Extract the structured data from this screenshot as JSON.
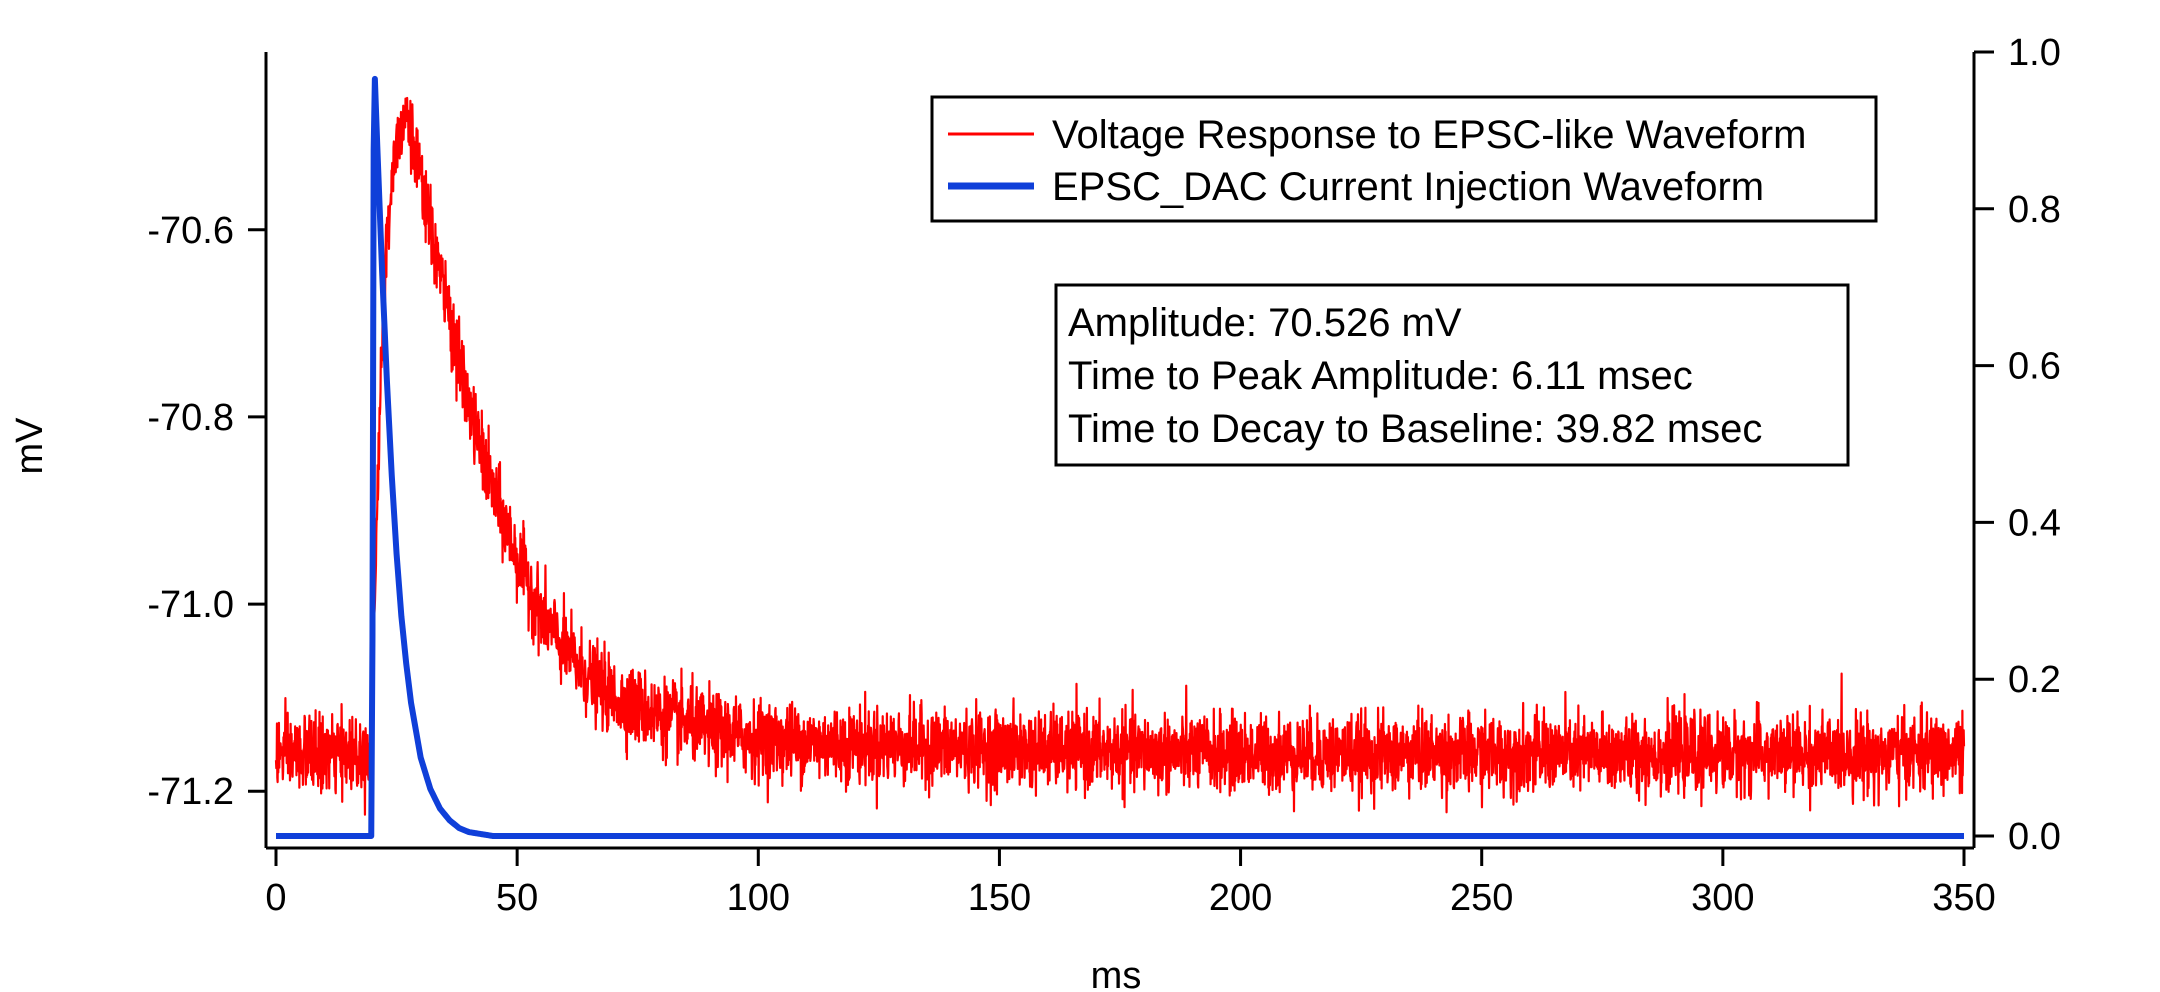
{
  "chart_data": {
    "type": "line",
    "xlabel": "ms",
    "ylabel": "mV",
    "xlim": [
      0,
      350
    ],
    "ylim_left": [
      -71.25,
      -70.41
    ],
    "ylim_right": [
      0.0,
      1.0
    ],
    "x_ticks": [
      0,
      50,
      100,
      150,
      200,
      250,
      300,
      350
    ],
    "y_ticks_left": [
      -70.6,
      -70.8,
      -71.0,
      -71.2
    ],
    "y_ticks_left_labels": [
      "-70.6",
      "-70.8",
      "-71.0",
      "-71.2"
    ],
    "y_ticks_right": [
      0.0,
      0.2,
      0.4,
      0.6,
      0.8,
      1.0
    ],
    "y_ticks_right_labels": [
      "0.0",
      "0.2",
      "0.4",
      "0.6",
      "0.8",
      "1.0"
    ],
    "grid": false,
    "legend_position": "top-right",
    "series": [
      {
        "name": "Voltage Response to EPSC-like Waveform",
        "axis": "left",
        "color": "#ff0000",
        "x": [
          0,
          10,
          19.5,
          20.5,
          22,
          24,
          26,
          27,
          28,
          30,
          35,
          40,
          45,
          50,
          55,
          60,
          65,
          70,
          80,
          90,
          100,
          120,
          150,
          200,
          250,
          300,
          350
        ],
        "values": [
          -71.16,
          -71.16,
          -71.16,
          -71.0,
          -70.7,
          -70.54,
          -70.48,
          -70.47,
          -70.5,
          -70.55,
          -70.67,
          -70.79,
          -70.88,
          -70.95,
          -71.01,
          -71.05,
          -71.08,
          -71.1,
          -71.12,
          -71.135,
          -71.145,
          -71.15,
          -71.155,
          -71.16,
          -71.16,
          -71.16,
          -71.16
        ]
      },
      {
        "name": "EPSC_DAC Current Injection Waveform",
        "axis": "right",
        "color": "#0f3fd9",
        "x": [
          0,
          19.9,
          20.3,
          21,
          22,
          23,
          24,
          25,
          26,
          27,
          28,
          30,
          32,
          34,
          36,
          38,
          40,
          45,
          350
        ],
        "values": [
          0.0,
          0.0,
          1.0,
          0.88,
          0.72,
          0.58,
          0.46,
          0.36,
          0.28,
          0.22,
          0.17,
          0.1,
          0.06,
          0.035,
          0.02,
          0.01,
          0.005,
          0.0,
          0.0
        ]
      }
    ],
    "annotations": [
      "Amplitude: 70.526 mV",
      "Time to Peak Amplitude: 6.11 msec",
      "Time to Decay to Baseline: 39.82 msec"
    ]
  }
}
